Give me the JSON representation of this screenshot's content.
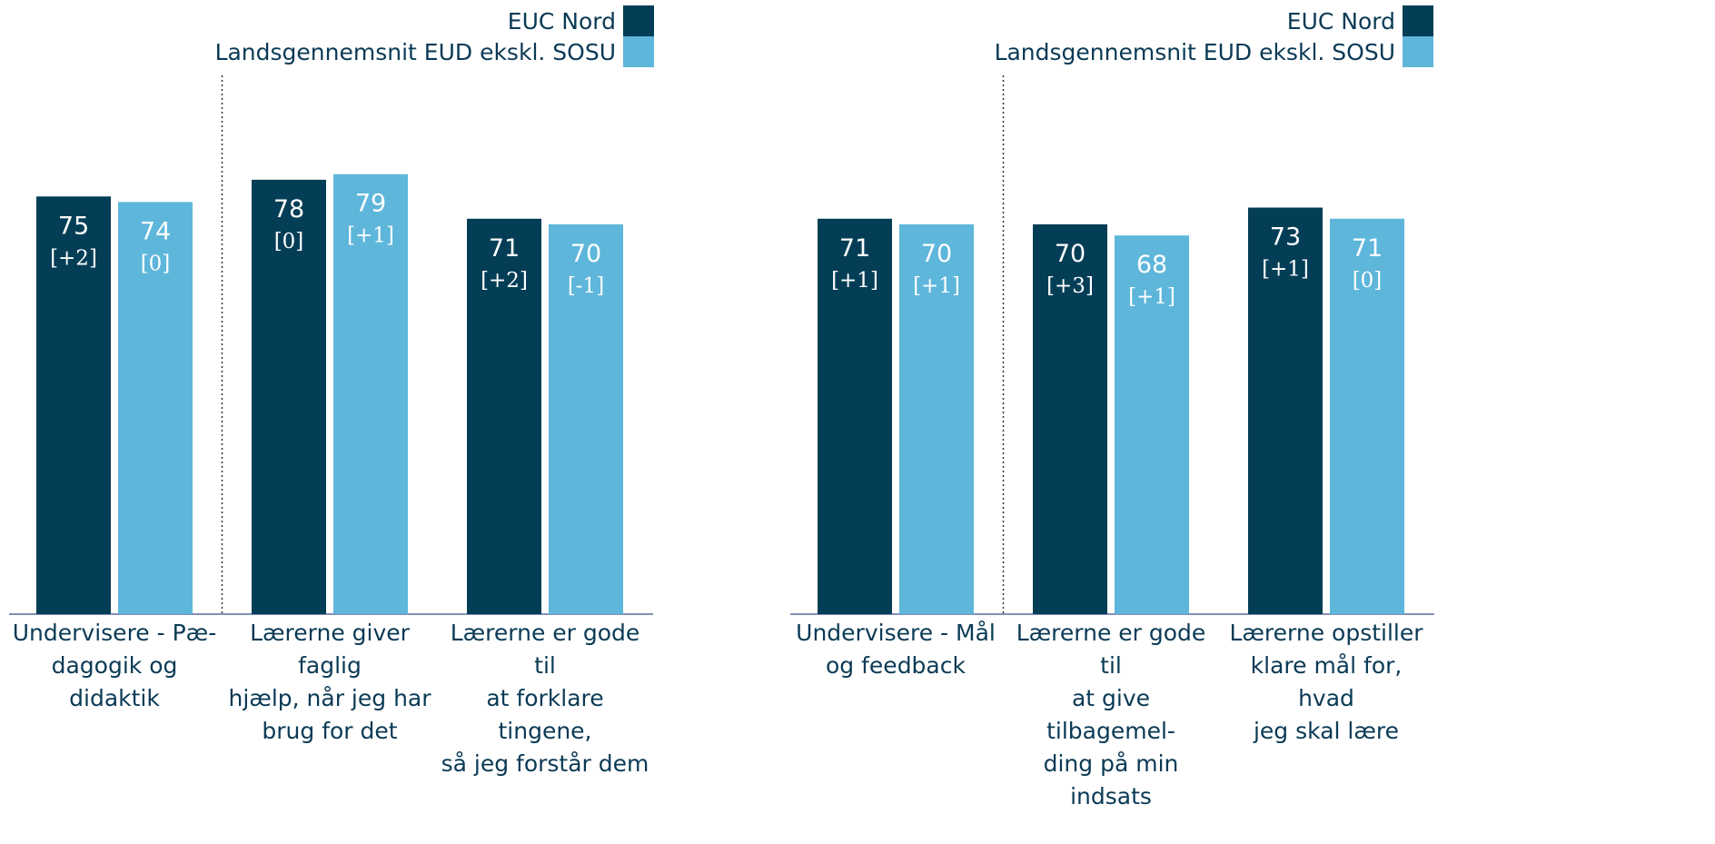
{
  "colors": {
    "euc": "#043e56",
    "land": "#5eb6da",
    "axis": "#5a6c9a",
    "label": "#0a3a55"
  },
  "chart_data": [
    {
      "type": "bar",
      "legend": [
        "EUC Nord",
        "Landsgennemsnit EUD ekskl. SOSU"
      ],
      "legend_position": "top-right",
      "categories": [
        [
          "Undervisere - Pæ-",
          "dagogik og didaktik"
        ],
        [
          "Lærerne giver faglig",
          "hjælp, når jeg har",
          "brug for det"
        ],
        [
          "Lærerne er gode til",
          "at forklare tingene,",
          "så jeg forstår dem"
        ]
      ],
      "series": [
        {
          "name": "EUC Nord",
          "values": [
            75,
            78,
            71
          ],
          "changes": [
            "[+2]",
            "[0]",
            "[+2]"
          ]
        },
        {
          "name": "Landsgennemsnit EUD ekskl. SOSU",
          "values": [
            74,
            79,
            70
          ],
          "changes": [
            "[0]",
            "[+1]",
            "[-1]"
          ]
        }
      ],
      "ylim": [
        0,
        100
      ],
      "divider_after_category": 0
    },
    {
      "type": "bar",
      "legend": [
        "EUC Nord",
        "Landsgennemsnit EUD ekskl. SOSU"
      ],
      "legend_position": "top-right",
      "categories": [
        [
          "Undervisere - Mål",
          "og feedback"
        ],
        [
          "Lærerne er gode til",
          "at give tilbagemel-",
          "ding på min indsats"
        ],
        [
          "Lærerne opstiller",
          "klare mål for, hvad",
          "jeg skal lære"
        ]
      ],
      "series": [
        {
          "name": "EUC Nord",
          "values": [
            71,
            70,
            73
          ],
          "changes": [
            "[+1]",
            "[+3]",
            "[+1]"
          ]
        },
        {
          "name": "Landsgennemsnit EUD ekskl. SOSU",
          "values": [
            70,
            68,
            71
          ],
          "changes": [
            "[+1]",
            "[+1]",
            "[0]"
          ]
        }
      ],
      "ylim": [
        0,
        100
      ],
      "divider_after_category": 0
    }
  ]
}
